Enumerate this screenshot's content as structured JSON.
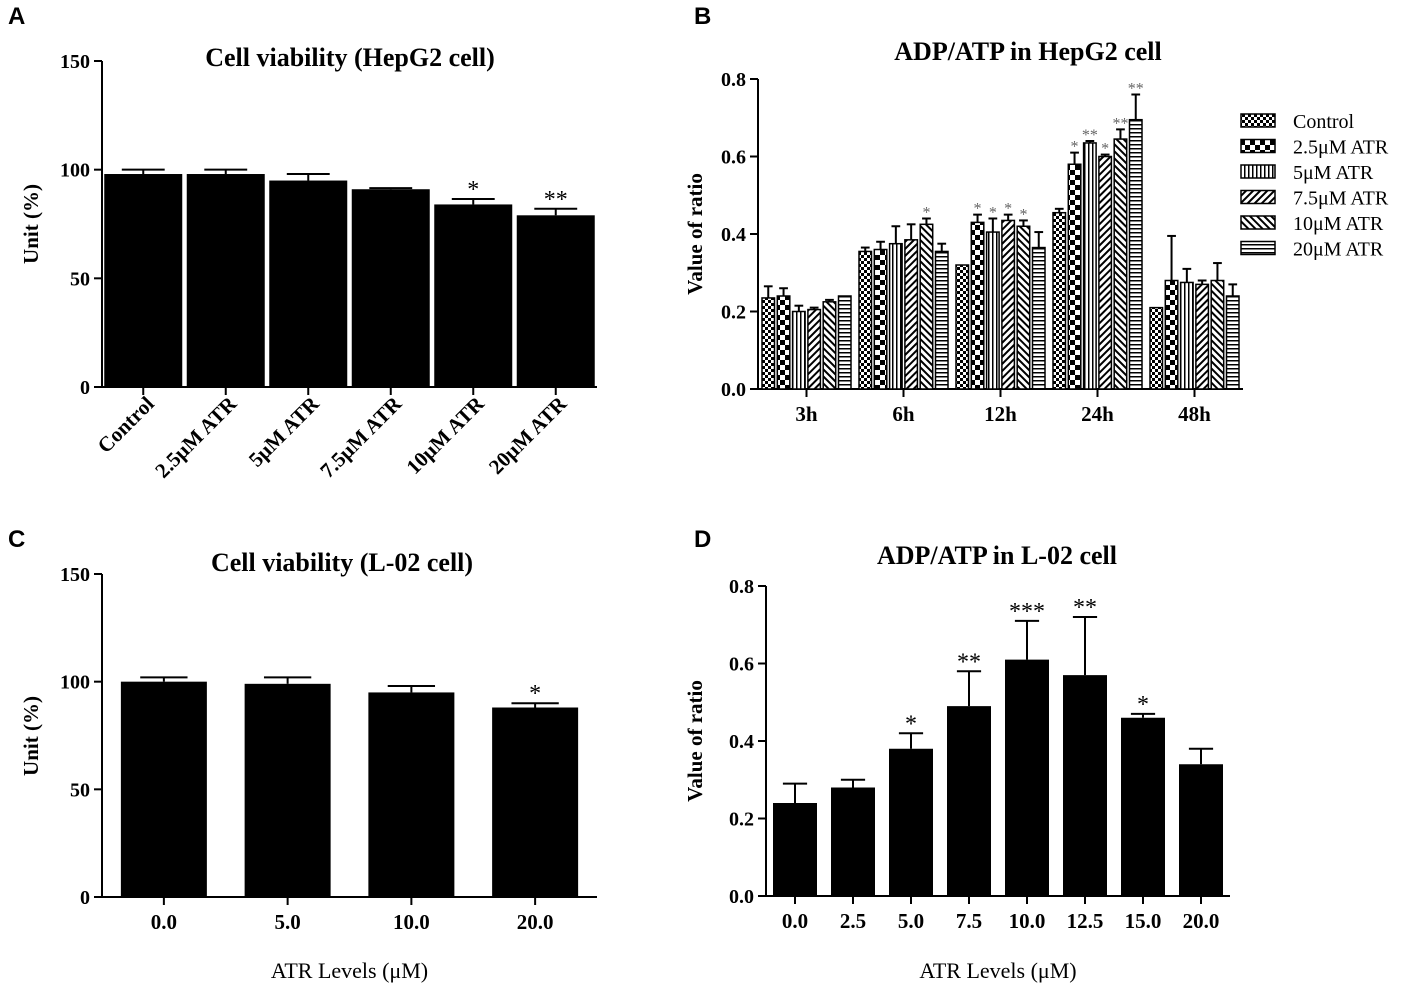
{
  "panels": {
    "A": {
      "label": "A"
    },
    "B": {
      "label": "B"
    },
    "C": {
      "label": "C"
    },
    "D": {
      "label": "D"
    }
  },
  "chart_data": [
    {
      "id": "A",
      "type": "bar",
      "title": "Cell viability (HepG2 cell)",
      "xlabel": "",
      "ylabel": "Unit (%)",
      "ylim": [
        0,
        150
      ],
      "yticks": [
        "0",
        "50",
        "100",
        "150"
      ],
      "categories": [
        "Control",
        "2.5μM ATR",
        "5μM ATR",
        "7.5μM ATR",
        "10μM ATR",
        "20μM ATR"
      ],
      "values": [
        98,
        98,
        95,
        91,
        84,
        79
      ],
      "errors": [
        2,
        2,
        3,
        0.5,
        2.5,
        3
      ],
      "significance": [
        "",
        "",
        "",
        "",
        "*",
        "**"
      ]
    },
    {
      "id": "B",
      "type": "bar",
      "title": "ADP/ATP in HepG2 cell",
      "xlabel": "",
      "ylabel": "Value of  ratio",
      "ylim": [
        0,
        0.8
      ],
      "yticks": [
        "0.0",
        "0.2",
        "0.4",
        "0.6",
        "0.8"
      ],
      "categories": [
        "3h",
        "6h",
        "12h",
        "24h",
        "48h"
      ],
      "legend_position": "right",
      "series": [
        {
          "name": "Control",
          "values": [
            0.235,
            0.355,
            0.32,
            0.455,
            0.21
          ],
          "errors": [
            0.03,
            0.01,
            0,
            0.01,
            0
          ],
          "significance": [
            "",
            "",
            "",
            "",
            ""
          ]
        },
        {
          "name": "2.5μM ATR",
          "values": [
            0.24,
            0.36,
            0.43,
            0.58,
            0.28
          ],
          "errors": [
            0.02,
            0.02,
            0.02,
            0.03,
            0.115
          ],
          "significance": [
            "",
            "",
            "*",
            "*",
            ""
          ]
        },
        {
          "name": "5μM ATR",
          "values": [
            0.2,
            0.375,
            0.405,
            0.635,
            0.275
          ],
          "errors": [
            0.015,
            0.045,
            0.035,
            0.005,
            0.035
          ],
          "significance": [
            "",
            "",
            "*",
            "**",
            ""
          ]
        },
        {
          "name": "7.5μM ATR",
          "values": [
            0.205,
            0.385,
            0.435,
            0.6,
            0.27
          ],
          "errors": [
            0.005,
            0.04,
            0.015,
            0.005,
            0.01
          ],
          "significance": [
            "",
            "",
            "*",
            "*",
            ""
          ]
        },
        {
          "name": "10μM ATR",
          "values": [
            0.225,
            0.425,
            0.42,
            0.645,
            0.28
          ],
          "errors": [
            0.005,
            0.015,
            0.015,
            0.025,
            0.045
          ],
          "significance": [
            "",
            "*",
            "*",
            "**",
            ""
          ]
        },
        {
          "name": "20μM ATR",
          "values": [
            0.24,
            0.355,
            0.365,
            0.695,
            0.24
          ],
          "errors": [
            0,
            0.02,
            0.04,
            0.065,
            0.03
          ],
          "significance": [
            "",
            "",
            "",
            "**",
            ""
          ]
        }
      ]
    },
    {
      "id": "C",
      "type": "bar",
      "title": "Cell viability (L-02 cell)",
      "xlabel": "ATR Levels (μM)",
      "ylabel": "Unit (%)",
      "ylim": [
        0,
        150
      ],
      "yticks": [
        "0",
        "50",
        "100",
        "150"
      ],
      "categories": [
        "0.0",
        "5.0",
        "10.0",
        "20.0"
      ],
      "values": [
        100,
        99,
        95,
        88
      ],
      "errors": [
        2,
        3,
        3,
        2
      ],
      "significance": [
        "",
        "",
        "",
        "*"
      ]
    },
    {
      "id": "D",
      "type": "bar",
      "title": "ADP/ATP in L-02 cell",
      "xlabel": "ATR Levels (μM)",
      "ylabel": "Value of  ratio",
      "ylim": [
        0,
        0.8
      ],
      "yticks": [
        "0.0",
        "0.2",
        "0.4",
        "0.6",
        "0.8"
      ],
      "categories": [
        "0.0",
        "2.5",
        "5.0",
        "7.5",
        "10.0",
        "12.5",
        "15.0",
        "20.0"
      ],
      "values": [
        0.24,
        0.28,
        0.38,
        0.49,
        0.61,
        0.57,
        0.46,
        0.34
      ],
      "errors": [
        0.05,
        0.02,
        0.04,
        0.09,
        0.1,
        0.15,
        0.01,
        0.04
      ],
      "significance": [
        "",
        "",
        "*",
        "**",
        "***",
        "**",
        "*",
        ""
      ]
    }
  ]
}
